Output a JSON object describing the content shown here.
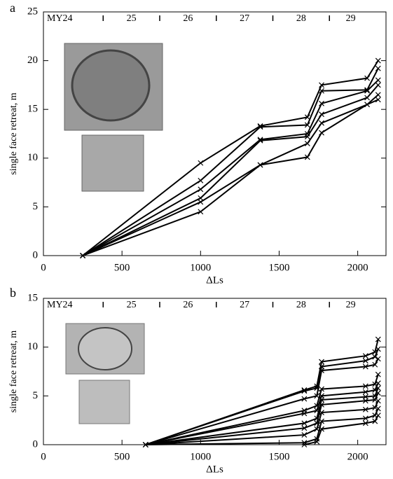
{
  "chart_data": [
    {
      "type": "line",
      "panel_label": "a",
      "xlabel": "ΔLs",
      "ylabel": "single face retreat, m",
      "xlim": [
        0,
        2180
      ],
      "xticks": [
        0,
        500,
        1000,
        1500,
        2000
      ],
      "ylim": [
        0,
        25
      ],
      "yticks": [
        0,
        5,
        10,
        15,
        20,
        25
      ],
      "mars_years": {
        "labels": [
          "MY24",
          "25",
          "26",
          "27",
          "28",
          "29"
        ],
        "boundaries": [
          380,
          740,
          1100,
          1460,
          1820
        ]
      },
      "marker": "x",
      "x": [
        250,
        1000,
        1380,
        1680,
        1770,
        2060,
        2130
      ],
      "series": [
        {
          "color": "#000000",
          "values": [
            0,
            9.5,
            13.3,
            14.2,
            17.5,
            18.2,
            20
          ]
        },
        {
          "color": "#000000",
          "values": [
            0,
            7.7,
            13.2,
            13.4,
            16.9,
            17.0,
            19.2
          ]
        },
        {
          "color": "#000000",
          "values": [
            0,
            6.8,
            11.9,
            12.5,
            15.6,
            16.9,
            18
          ]
        },
        {
          "color": "#000000",
          "values": [
            0,
            5.9,
            11.8,
            12.2,
            14.5,
            16.2,
            17.5
          ]
        },
        {
          "color": "#000000",
          "values": [
            0,
            5.5,
            9.3,
            11.5,
            13.6,
            15.5,
            16.5
          ]
        },
        {
          "color": "#000000",
          "values": [
            0,
            4.5,
            9.3,
            10.1,
            12.6,
            15.5,
            16
          ]
        }
      ]
    },
    {
      "type": "line",
      "panel_label": "b",
      "xlabel": "ΔLs",
      "ylabel": "single face retreat, m",
      "xlim": [
        0,
        2180
      ],
      "xticks": [
        0,
        500,
        1000,
        1500,
        2000
      ],
      "ylim": [
        0,
        15
      ],
      "yticks": [
        0,
        5,
        10,
        15
      ],
      "mars_years": {
        "labels": [
          "MY24",
          "25",
          "26",
          "27",
          "28",
          "29"
        ],
        "boundaries": [
          380,
          740,
          1100,
          1460,
          1820
        ]
      },
      "marker": "x",
      "x": [
        650,
        1660,
        1740,
        1770,
        2050,
        2110,
        2130
      ],
      "series": [
        {
          "color": "#000000",
          "values": [
            0,
            5.6,
            6.0,
            8.5,
            9.1,
            9.5,
            10.8
          ]
        },
        {
          "color": "#000000",
          "values": [
            0,
            5.5,
            5.8,
            8.0,
            8.6,
            9.0,
            9.8
          ]
        },
        {
          "color": "#000000",
          "values": [
            0,
            4.7,
            5.0,
            7.6,
            8.0,
            8.2,
            8.8
          ]
        },
        {
          "color": "#000000",
          "values": [
            0,
            3.5,
            4.0,
            5.7,
            6.0,
            6.2,
            7.2
          ]
        },
        {
          "color": "#000000",
          "values": [
            0,
            3.2,
            3.5,
            5.0,
            5.4,
            5.6,
            6.3
          ]
        },
        {
          "color": "#000000",
          "values": [
            0,
            2.2,
            2.7,
            4.6,
            4.9,
            5.0,
            5.8
          ]
        },
        {
          "color": "#000000",
          "values": [
            0,
            1.7,
            2.2,
            4.1,
            4.5,
            4.6,
            5.3
          ]
        },
        {
          "color": "#000000",
          "values": [
            0,
            1.0,
            1.6,
            3.3,
            3.6,
            3.8,
            4.5
          ]
        },
        {
          "color": "#000000",
          "values": [
            0,
            0.2,
            0.6,
            2.4,
            2.7,
            3.0,
            3.7
          ]
        },
        {
          "color": "#000000",
          "values": [
            null,
            0,
            0.3,
            1.6,
            2.2,
            2.4,
            3.0
          ]
        }
      ]
    }
  ]
}
